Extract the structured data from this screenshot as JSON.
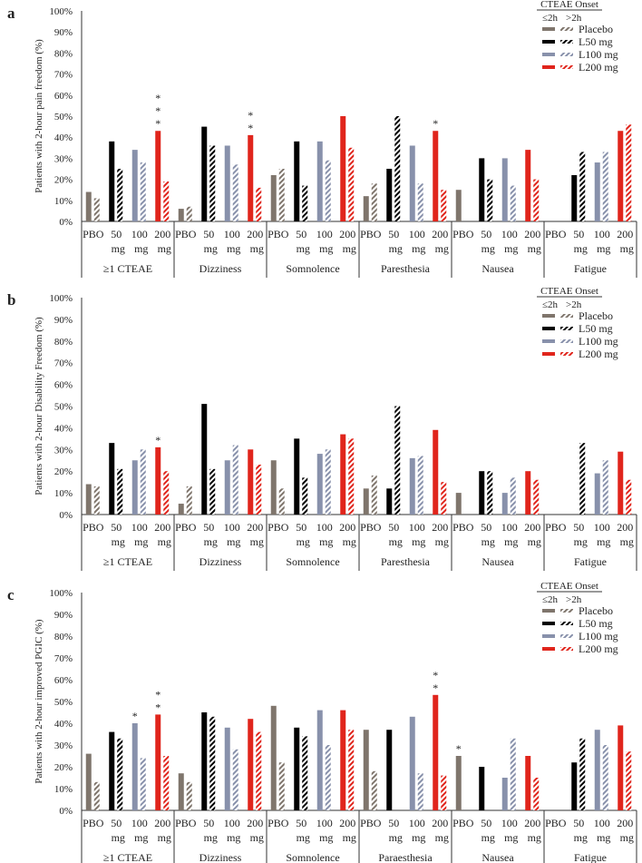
{
  "legend": {
    "title": "CTEAE Onset",
    "le2h": "≤2h",
    "gt2h": ">2h",
    "items": [
      "Placebo",
      "L50 mg",
      "L100 mg",
      "L200 mg"
    ]
  },
  "colors": {
    "Placebo": "#7f756c",
    "L50 mg": "#000000",
    "L100 mg": "#8891ab",
    "L200 mg": "#e0251c"
  },
  "dose_labels": [
    [
      "PBO",
      ""
    ],
    [
      "50",
      "mg"
    ],
    [
      "100",
      "mg"
    ],
    [
      "200",
      "mg"
    ]
  ],
  "chart_data": [
    {
      "type": "bar",
      "panel": "a",
      "ylabel": "Patients with 2-hour pain freedom (%)",
      "ylim": [
        0,
        100
      ],
      "yticks": [
        "0%",
        "10%",
        "20%",
        "30%",
        "40%",
        "50%",
        "60%",
        "70%",
        "80%",
        "90%",
        "100%"
      ],
      "categories": [
        "≥1 CTEAE",
        "Dizziness",
        "Somnolence",
        "Paresthesia",
        "Nausea",
        "Fatigue"
      ],
      "le2h": [
        [
          14,
          38,
          34,
          43
        ],
        [
          6,
          45,
          36,
          41
        ],
        [
          22,
          38,
          38,
          50
        ],
        [
          12,
          25,
          36,
          43
        ],
        [
          15,
          30,
          30,
          34
        ],
        [
          null,
          22,
          28,
          43
        ]
      ],
      "gt2h": [
        [
          11,
          25,
          28,
          19
        ],
        [
          7,
          36,
          27,
          16
        ],
        [
          25,
          17,
          29,
          35
        ],
        [
          18,
          50,
          18,
          15
        ],
        [
          null,
          20,
          17,
          20
        ],
        [
          null,
          33,
          33,
          46
        ]
      ],
      "annotations": [
        {
          "cat": 0,
          "dose": 3,
          "text": "***"
        },
        {
          "cat": 1,
          "dose": 3,
          "text": "**"
        },
        {
          "cat": 3,
          "dose": 3,
          "text": "*"
        }
      ]
    },
    {
      "type": "bar",
      "panel": "b",
      "ylabel": "Patients with 2-hour Disability Freedom (%)",
      "ylim": [
        0,
        100
      ],
      "yticks": [
        "0%",
        "10%",
        "20%",
        "30%",
        "40%",
        "50%",
        "60%",
        "70%",
        "80%",
        "90%",
        "100%"
      ],
      "categories": [
        "≥1 CTEAE",
        "Dizziness",
        "Somnolence",
        "Paresthesia",
        "Nausea",
        "Fatigue"
      ],
      "le2h": [
        [
          14,
          33,
          25,
          31
        ],
        [
          5,
          51,
          25,
          30
        ],
        [
          25,
          35,
          28,
          37
        ],
        [
          12,
          12,
          26,
          39
        ],
        [
          10,
          20,
          10,
          20
        ],
        [
          null,
          null,
          19,
          29
        ]
      ],
      "gt2h": [
        [
          13,
          21,
          30,
          20
        ],
        [
          13,
          21,
          32,
          23
        ],
        [
          12,
          17,
          30,
          35
        ],
        [
          18,
          50,
          27,
          15
        ],
        [
          null,
          20,
          17,
          16
        ],
        [
          null,
          33,
          25,
          16
        ]
      ],
      "annotations": [
        {
          "cat": 0,
          "dose": 3,
          "text": "*"
        }
      ]
    },
    {
      "type": "bar",
      "panel": "c",
      "ylabel": "Patients with 2-hour improved PGIC (%)",
      "ylim": [
        0,
        100
      ],
      "yticks": [
        "0%",
        "10%",
        "20%",
        "30%",
        "40%",
        "50%",
        "60%",
        "70%",
        "80%",
        "90%",
        "100%"
      ],
      "categories": [
        "≥1 CTEAE",
        "Dizziness",
        "Somnolence",
        "Paraesthesia",
        "Nausea",
        "Fatigue"
      ],
      "le2h": [
        [
          26,
          36,
          40,
          44
        ],
        [
          17,
          45,
          38,
          42
        ],
        [
          48,
          38,
          46,
          46
        ],
        [
          37,
          37,
          43,
          53
        ],
        [
          25,
          20,
          15,
          25
        ],
        [
          null,
          22,
          37,
          39
        ]
      ],
      "gt2h": [
        [
          13,
          33,
          24,
          25
        ],
        [
          13,
          43,
          28,
          36
        ],
        [
          22,
          34,
          30,
          37
        ],
        [
          18,
          null,
          17,
          16
        ],
        [
          null,
          null,
          33,
          15
        ],
        [
          null,
          33,
          30,
          27
        ]
      ],
      "annotations": [
        {
          "cat": 0,
          "dose": 2,
          "text": "*"
        },
        {
          "cat": 0,
          "dose": 3,
          "text": "**"
        },
        {
          "cat": 3,
          "dose": 3,
          "text": "**"
        },
        {
          "cat": 4,
          "dose": 0,
          "text": "*"
        }
      ]
    }
  ]
}
